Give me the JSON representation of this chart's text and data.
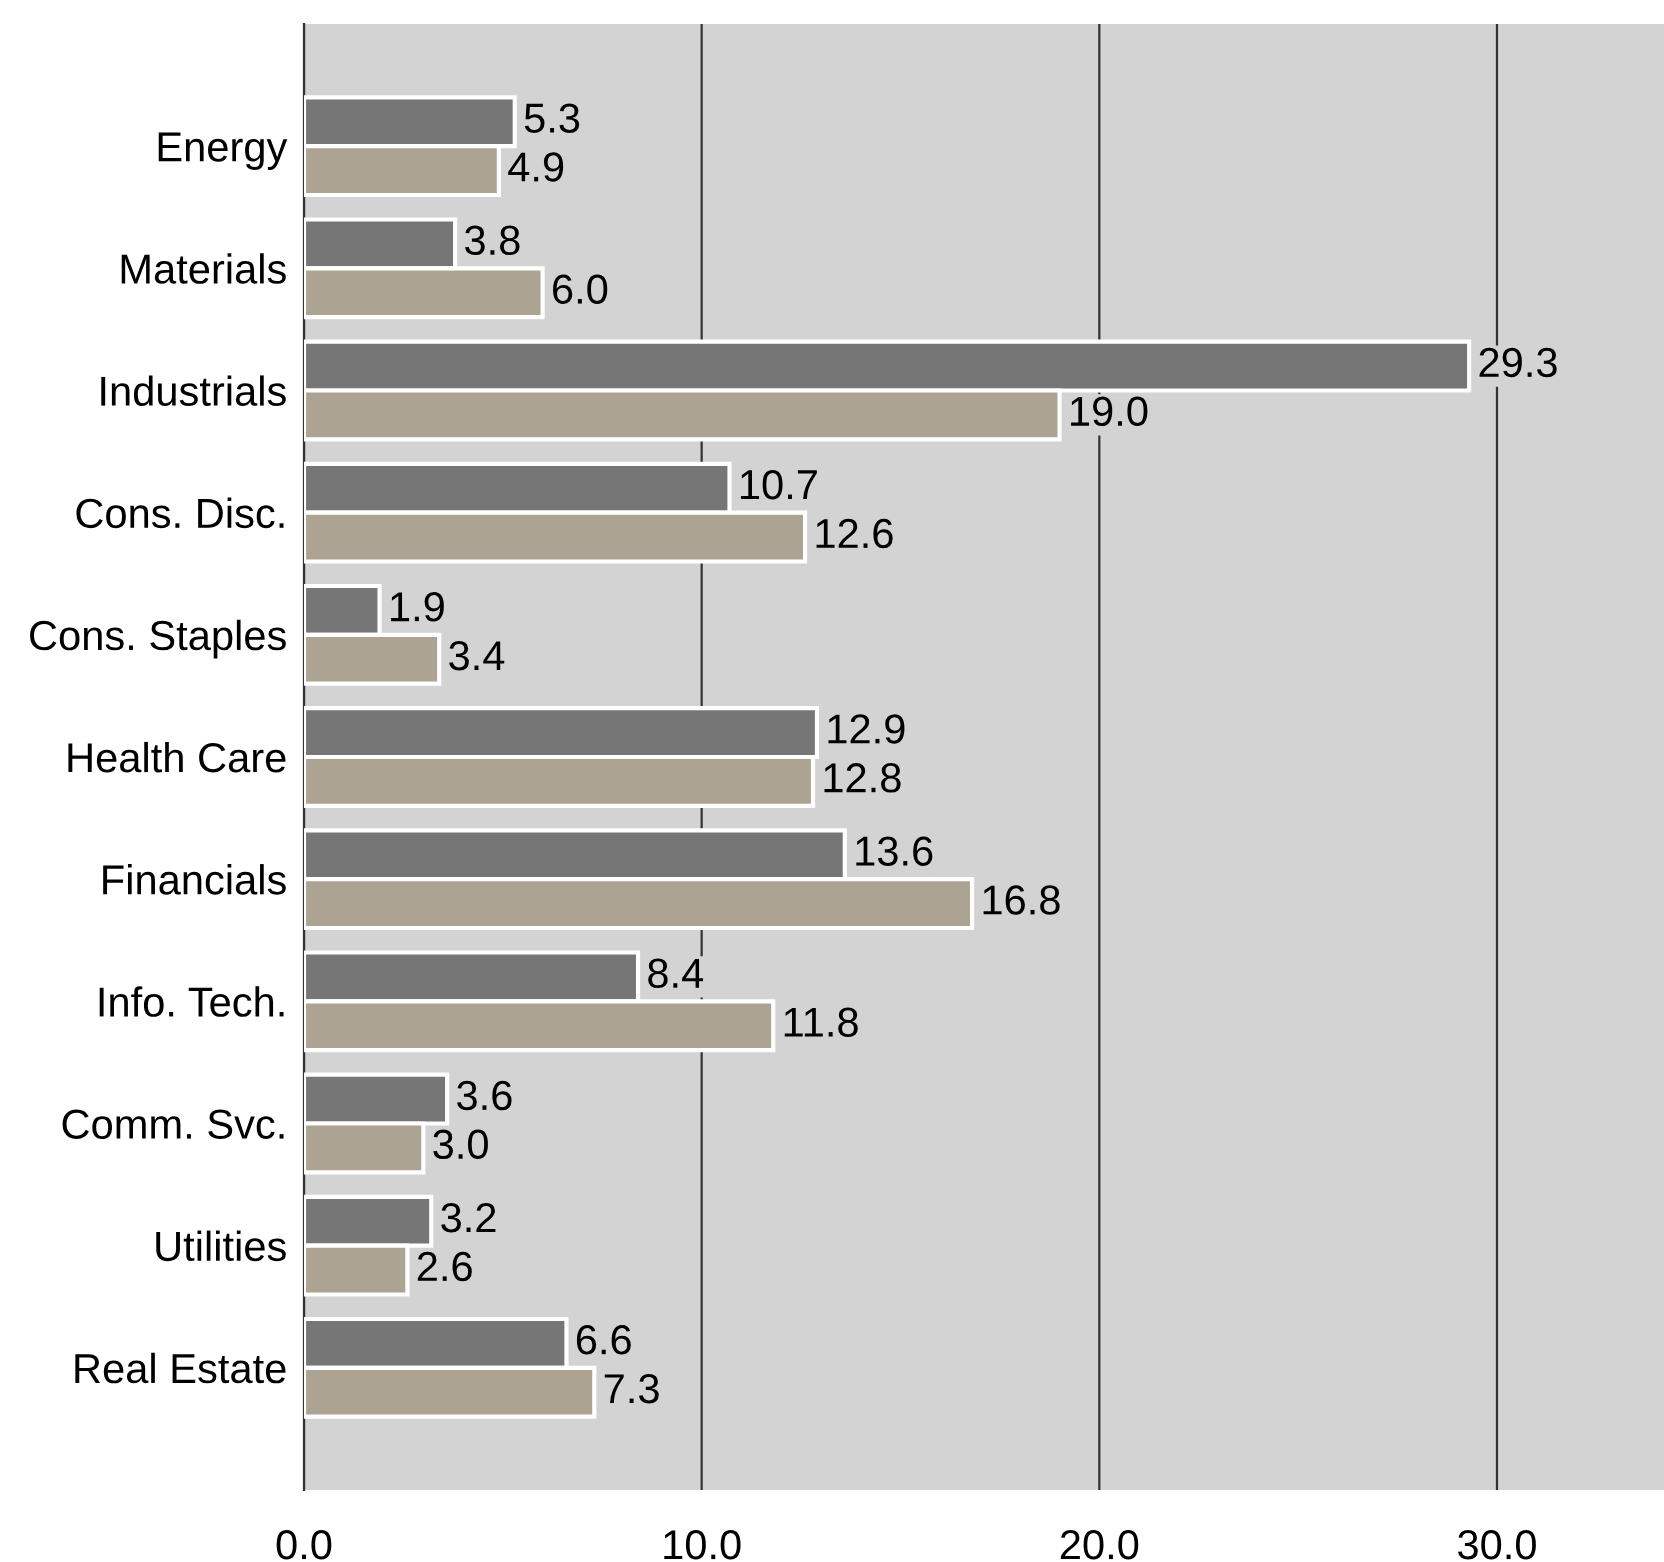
{
  "chart_data": {
    "type": "bar",
    "orientation": "horizontal",
    "categories": [
      "Energy",
      "Materials",
      "Industrials",
      "Cons. Disc.",
      "Cons. Staples",
      "Health Care",
      "Financials",
      "Info. Tech.",
      "Comm. Svc.",
      "Utilities",
      "Real Estate"
    ],
    "series": [
      {
        "color": "#767676",
        "values": [
          5.3,
          3.8,
          29.3,
          10.7,
          1.9,
          12.9,
          13.6,
          8.4,
          3.6,
          3.2,
          6.6
        ],
        "value_labels": [
          "5.3",
          "3.8",
          "29.3",
          "10.7",
          "1.9",
          "12.9",
          "13.6",
          "8.4",
          "3.6",
          "3.2",
          "6.6"
        ]
      },
      {
        "color": "#ada393",
        "values": [
          4.9,
          6.0,
          19.0,
          12.6,
          3.4,
          12.8,
          16.8,
          11.8,
          3.0,
          2.6,
          7.3
        ],
        "value_labels": [
          "4.9",
          "6.0",
          "19.0",
          "12.6",
          "3.4",
          "12.8",
          "16.8",
          "11.8",
          "3.0",
          "2.6",
          "7.3"
        ]
      }
    ],
    "xlim": [
      0,
      34.2
    ],
    "xticks": [
      {
        "value": 0,
        "label": "0.0"
      },
      {
        "value": 10,
        "label": "10.0"
      },
      {
        "value": 20,
        "label": "20.0"
      },
      {
        "value": 30,
        "label": "30.0"
      }
    ],
    "grid": "x",
    "legend": false
  }
}
